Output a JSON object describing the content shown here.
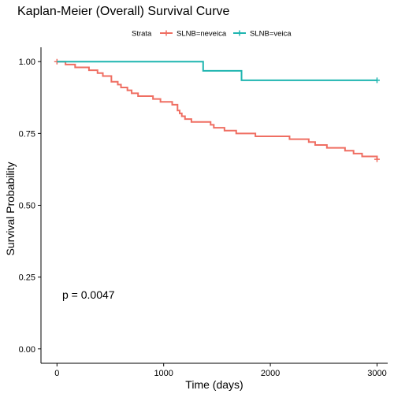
{
  "chart_data": {
    "type": "line",
    "step": true,
    "title": "Kaplan-Meier (Overall) Survival Curve",
    "xlabel": "Time (days)",
    "ylabel": "Survival Probability",
    "xlim": [
      -150,
      3100
    ],
    "ylim": [
      -0.05,
      1.05
    ],
    "xticks": [
      0,
      1000,
      2000,
      3000
    ],
    "yticks": [
      0.0,
      0.25,
      0.5,
      0.75,
      1.0
    ],
    "xtick_labels": [
      "0",
      "1000",
      "2000",
      "3000"
    ],
    "ytick_labels": [
      "0.00",
      "0.25",
      "0.50",
      "0.75",
      "1.00"
    ],
    "grid": false,
    "legend_position": "top",
    "legend_title": "Strata",
    "annotation": "p = 0.0047",
    "series": [
      {
        "name": "SLNB=neveica",
        "color": "#ef6e62",
        "x": [
          0,
          80,
          170,
          300,
          380,
          430,
          510,
          570,
          600,
          660,
          700,
          760,
          800,
          900,
          970,
          1080,
          1130,
          1150,
          1170,
          1200,
          1230,
          1260,
          1330,
          1440,
          1470,
          1570,
          1680,
          1860,
          2000,
          2180,
          2290,
          2360,
          2420,
          2530,
          2700,
          2780,
          2860,
          3000
        ],
        "y": [
          1.0,
          0.99,
          0.98,
          0.97,
          0.96,
          0.95,
          0.93,
          0.92,
          0.91,
          0.9,
          0.89,
          0.88,
          0.88,
          0.87,
          0.86,
          0.85,
          0.83,
          0.82,
          0.81,
          0.8,
          0.8,
          0.79,
          0.79,
          0.78,
          0.77,
          0.76,
          0.75,
          0.74,
          0.74,
          0.73,
          0.73,
          0.72,
          0.71,
          0.7,
          0.69,
          0.68,
          0.67,
          0.66
        ],
        "censored": [
          [
            0,
            1.0
          ],
          [
            3000,
            0.66
          ]
        ]
      },
      {
        "name": "SLNB=veica",
        "color": "#1fb5b0",
        "x": [
          0,
          1370,
          1730,
          3000
        ],
        "y": [
          1.0,
          0.968,
          0.935,
          0.935
        ],
        "censored": [
          [
            3000,
            0.935
          ]
        ]
      }
    ]
  }
}
